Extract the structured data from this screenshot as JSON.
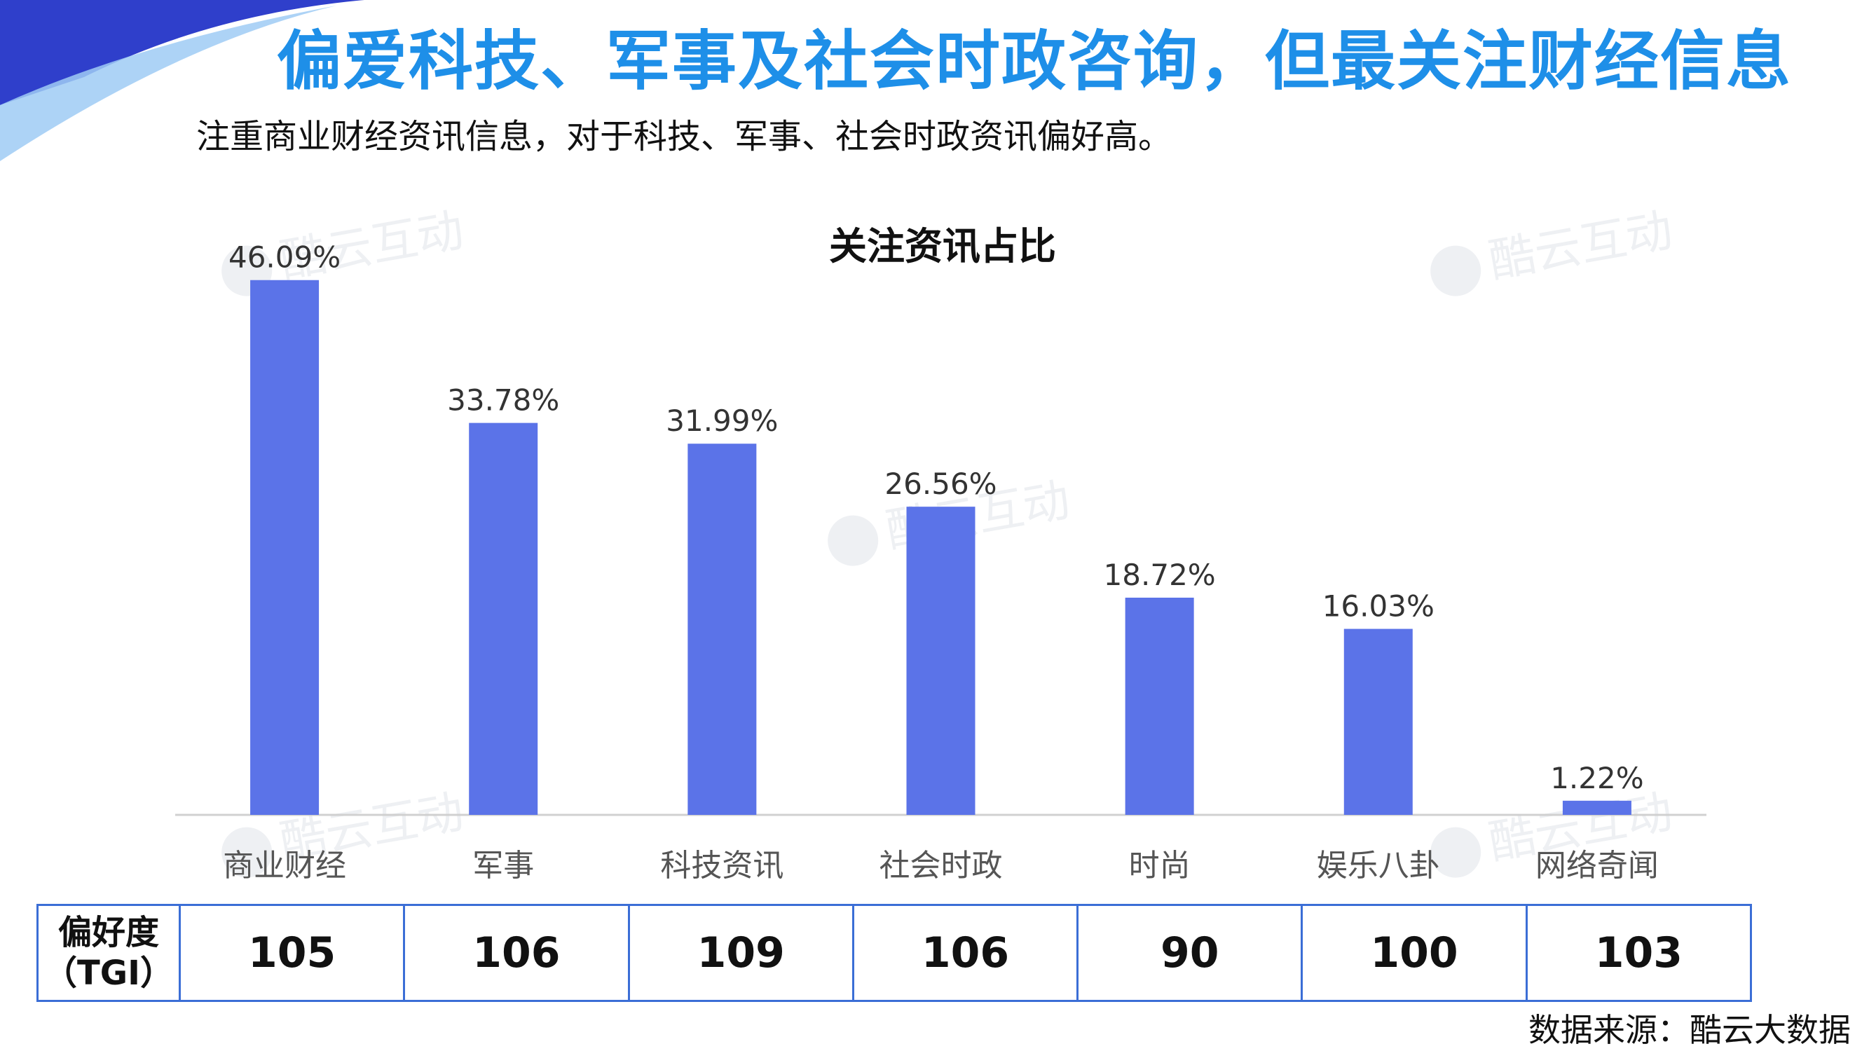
{
  "page": {
    "title": "偏爱科技、军事及社会时政咨询，但最关注财经信息",
    "subtitle": "注重商业财经资讯信息，对于科技、军事、社会时政资讯偏好高。",
    "watermark": "酷云互动",
    "source": "数据来源：酷云大数据"
  },
  "colors": {
    "title": "#1E8FE8",
    "bar": "#5B73E8",
    "table_border": "#3B6ED6",
    "corner_dark": "#2F3FCB",
    "corner_light": "#9FCBF5"
  },
  "chart_data": {
    "type": "bar",
    "title": "关注资讯占比",
    "categories": [
      "商业财经",
      "军事",
      "科技资讯",
      "社会时政",
      "时尚",
      "娱乐八卦",
      "网络奇闻"
    ],
    "values": [
      46.09,
      33.78,
      31.99,
      26.56,
      18.72,
      16.03,
      1.22
    ],
    "value_labels": [
      "46.09%",
      "33.78%",
      "31.99%",
      "26.56%",
      "18.72%",
      "16.03%",
      "1.22%"
    ],
    "unit": "%",
    "ylim": [
      0,
      50
    ],
    "grid": false,
    "legend": "none"
  },
  "tgi_table": {
    "header_line1": "偏好度",
    "header_line2": "（TGI）",
    "values": [
      "105",
      "106",
      "109",
      "106",
      "90",
      "100",
      "103"
    ]
  }
}
